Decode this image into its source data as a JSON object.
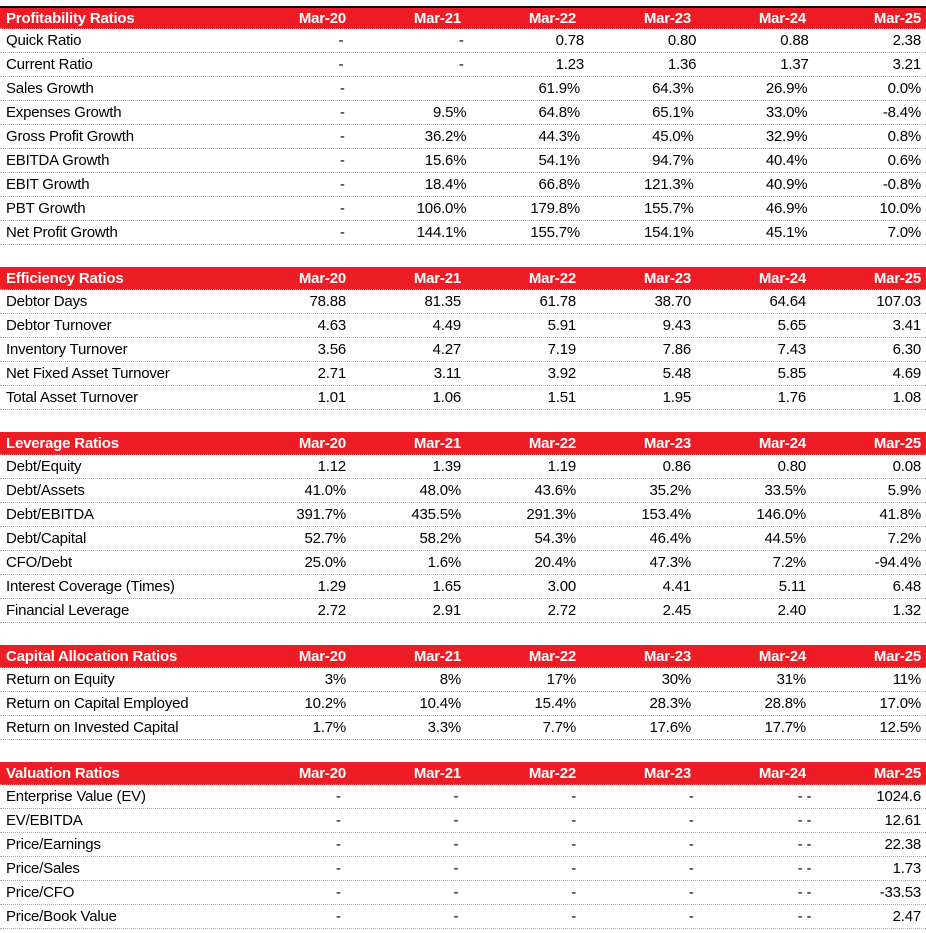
{
  "sheet": {
    "description": "Financial ratio analysis tables, Mar-20 to Mar-25",
    "colors": {
      "header_bg": "#ee1c25",
      "header_text": "#ffffff",
      "body_text": "#000000",
      "grid_dotted": "#ababab",
      "top_rule": "#0a0a0a",
      "background": "#ffffff"
    }
  },
  "columns": [
    "Mar-20",
    "Mar-21",
    "Mar-22",
    "Mar-23",
    "Mar-24",
    "Mar-25"
  ],
  "tables": [
    {
      "id": "profitability-ratios-table",
      "title": "Profitability Ratios",
      "rows": [
        {
          "label": "Quick Ratio",
          "values": [
            "-",
            "-",
            "0.78",
            "0.80",
            "0.88",
            "2.38"
          ]
        },
        {
          "label": "Current Ratio",
          "values": [
            "-",
            "-",
            "1.23",
            "1.36",
            "1.37",
            "3.21"
          ]
        },
        {
          "label": "Sales Growth",
          "values": [
            "-",
            "",
            "61.9%",
            "64.3%",
            "26.9%",
            "0.0%"
          ]
        },
        {
          "label": "Expenses Growth",
          "values": [
            "-",
            "9.5%",
            "64.8%",
            "65.1%",
            "33.0%",
            "-8.4%"
          ]
        },
        {
          "label": "Gross Profit Growth",
          "values": [
            "-",
            "36.2%",
            "44.3%",
            "45.0%",
            "32.9%",
            "0.8%"
          ]
        },
        {
          "label": "EBITDA Growth",
          "values": [
            "-",
            "15.6%",
            "54.1%",
            "94.7%",
            "40.4%",
            "0.6%"
          ]
        },
        {
          "label": "EBIT Growth",
          "values": [
            "-",
            "18.4%",
            "66.8%",
            "121.3%",
            "40.9%",
            "-0.8%"
          ]
        },
        {
          "label": "PBT Growth",
          "values": [
            "-",
            "106.0%",
            "179.8%",
            "155.7%",
            "46.9%",
            "10.0%"
          ]
        },
        {
          "label": "Net Profit Growth",
          "values": [
            "-",
            "144.1%",
            "155.7%",
            "154.1%",
            "45.1%",
            "7.0%"
          ]
        }
      ]
    },
    {
      "id": "efficiency-ratios-table",
      "title": "Efficiency Ratios",
      "rows": [
        {
          "label": "Debtor Days",
          "values": [
            "78.88",
            "81.35",
            "61.78",
            "38.70",
            "64.64",
            "107.03"
          ]
        },
        {
          "label": "Debtor Turnover",
          "values": [
            "4.63",
            "4.49",
            "5.91",
            "9.43",
            "5.65",
            "3.41"
          ]
        },
        {
          "label": "Inventory Turnover",
          "values": [
            "3.56",
            "4.27",
            "7.19",
            "7.86",
            "7.43",
            "6.30"
          ]
        },
        {
          "label": "Net Fixed Asset Turnover",
          "values": [
            "2.71",
            "3.11",
            "3.92",
            "5.48",
            "5.85",
            "4.69"
          ]
        },
        {
          "label": "Total Asset Turnover",
          "values": [
            "1.01",
            "1.06",
            "1.51",
            "1.95",
            "1.76",
            "1.08"
          ]
        }
      ]
    },
    {
      "id": "leverage-ratios-table",
      "title": "Leverage Ratios",
      "rows": [
        {
          "label": "Debt/Equity",
          "values": [
            "1.12",
            "1.39",
            "1.19",
            "0.86",
            "0.80",
            "0.08"
          ]
        },
        {
          "label": "Debt/Assets",
          "values": [
            "41.0%",
            "48.0%",
            "43.6%",
            "35.2%",
            "33.5%",
            "5.9%"
          ]
        },
        {
          "label": "Debt/EBITDA",
          "values": [
            "391.7%",
            "435.5%",
            "291.3%",
            "153.4%",
            "146.0%",
            "41.8%"
          ]
        },
        {
          "label": "Debt/Capital",
          "values": [
            "52.7%",
            "58.2%",
            "54.3%",
            "46.4%",
            "44.5%",
            "7.2%"
          ]
        },
        {
          "label": "CFO/Debt",
          "values": [
            "25.0%",
            "1.6%",
            "20.4%",
            "47.3%",
            "7.2%",
            "-94.4%"
          ]
        },
        {
          "label": "Interest Coverage (Times)",
          "values": [
            "1.29",
            "1.65",
            "3.00",
            "4.41",
            "5.11",
            "6.48"
          ]
        },
        {
          "label": "Financial Leverage",
          "values": [
            "2.72",
            "2.91",
            "2.72",
            "2.45",
            "2.40",
            "1.32"
          ]
        }
      ]
    },
    {
      "id": "capital-allocation-ratios-table",
      "title": "Capital Allocation Ratios",
      "rows": [
        {
          "label": "Return on Equity",
          "values": [
            "3%",
            "8%",
            "17%",
            "30%",
            "31%",
            "11%"
          ]
        },
        {
          "label": "Return on Capital Employed",
          "values": [
            "10.2%",
            "10.4%",
            "15.4%",
            "28.3%",
            "28.8%",
            "17.0%"
          ]
        },
        {
          "label": "Return on Invested Capital",
          "values": [
            "1.7%",
            "3.3%",
            "7.7%",
            "17.6%",
            "17.7%",
            "12.5%"
          ]
        }
      ]
    },
    {
      "id": "valuation-ratios-table",
      "title": "Valuation Ratios",
      "rows": [
        {
          "label": "Enterprise Value (EV)",
          "values": [
            "-",
            "-",
            "-",
            "-",
            "- -",
            "1024.6"
          ]
        },
        {
          "label": "EV/EBITDA",
          "values": [
            "-",
            "-",
            "-",
            "-",
            "- -",
            "12.61"
          ]
        },
        {
          "label": "Price/Earnings",
          "values": [
            "-",
            "-",
            "-",
            "-",
            "- -",
            "22.38"
          ]
        },
        {
          "label": "Price/Sales",
          "values": [
            "-",
            "-",
            "-",
            "-",
            "- -",
            "1.73"
          ]
        },
        {
          "label": "Price/CFO",
          "values": [
            "-",
            "-",
            "-",
            "-",
            "- -",
            "-33.53"
          ]
        },
        {
          "label": "Price/Book Value",
          "values": [
            "-",
            "-",
            "-",
            "-",
            "- -",
            "2.47"
          ]
        }
      ]
    }
  ]
}
